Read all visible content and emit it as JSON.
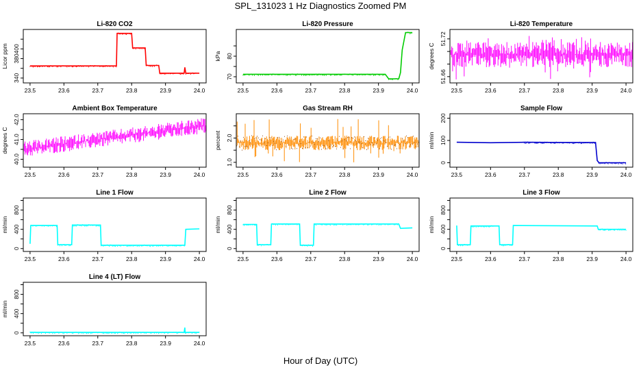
{
  "title": "SPL_131023  1 Hz Diagnostics Zoomed PM",
  "xlabel": "Hour of Day (UTC)",
  "chart_data": [
    {
      "type": "line",
      "title": "Li-820 CO2",
      "ylabel": "Licor ppm",
      "xlim": [
        23.48,
        24.02
      ],
      "ylim": [
        330,
        440
      ],
      "xticks": [
        "23.5",
        "23.6",
        "23.7",
        "23.8",
        "23.9",
        "24.0"
      ],
      "yticks": [
        340,
        360,
        380,
        400,
        420
      ],
      "ytick_labels": [
        "340",
        "",
        "380",
        "400",
        ""
      ],
      "color": "#ff0000",
      "series": [
        {
          "name": "CO2",
          "x": [
            23.5,
            23.755,
            23.757,
            23.8,
            23.803,
            23.84,
            23.843,
            23.88,
            23.883,
            23.955,
            23.957,
            23.96,
            23.962,
            24.0
          ],
          "y": [
            365,
            365,
            432,
            432,
            402,
            402,
            366,
            366,
            350,
            350,
            362,
            350,
            350,
            350
          ]
        }
      ]
    },
    {
      "type": "line",
      "title": "Li-820 Pressure",
      "ylabel": "kPa",
      "xlim": [
        23.48,
        24.02
      ],
      "ylim": [
        67,
        93
      ],
      "xticks": [
        "23.5",
        "23.6",
        "23.7",
        "23.8",
        "23.9",
        "24.0"
      ],
      "yticks": [
        70,
        75,
        80,
        85
      ],
      "ytick_labels": [
        "70",
        "",
        "80",
        ""
      ],
      "color": "#00cc00",
      "series": [
        {
          "name": "Pressure",
          "x": [
            23.5,
            23.92,
            23.93,
            23.96,
            23.965,
            23.97,
            23.98,
            24.0
          ],
          "y": [
            71.2,
            71.2,
            69.0,
            69.0,
            72.0,
            83.0,
            91.5,
            91.5
          ]
        }
      ]
    },
    {
      "type": "line",
      "title": "Li-820 Temperature",
      "ylabel": "degrees C",
      "xlim": [
        23.48,
        24.02
      ],
      "ylim": [
        51.65,
        51.735
      ],
      "xticks": [
        "23.5",
        "23.6",
        "23.7",
        "23.8",
        "23.9",
        "24.0"
      ],
      "yticks": [
        51.66,
        51.68,
        51.7,
        51.72
      ],
      "ytick_labels": [
        "51.66",
        "",
        "",
        "51.72"
      ],
      "color": "#ff00ff",
      "band": {
        "lo": 51.675,
        "hi": 51.715,
        "spike_lo": 51.655,
        "spike_hi": 51.725
      }
    },
    {
      "type": "line",
      "title": "Ambient Box Temperature",
      "ylabel": "degrees C",
      "xlim": [
        23.48,
        24.02
      ],
      "ylim": [
        39.6,
        42.3
      ],
      "xticks": [
        "23.5",
        "23.6",
        "23.7",
        "23.8",
        "23.9",
        "24.0"
      ],
      "yticks": [
        40.0,
        40.5,
        41.0,
        41.5,
        42.0
      ],
      "ytick_labels": [
        "40.0",
        "",
        "41.0",
        "",
        "42.0"
      ],
      "color": "#ff00ff",
      "band": {
        "lo_start": 40.1,
        "lo_end": 41.3,
        "hi_start": 40.9,
        "hi_end": 42.1
      }
    },
    {
      "type": "scatter",
      "title": "Gas Stream RH",
      "ylabel": "percent",
      "xlim": [
        23.48,
        24.02
      ],
      "ylim": [
        0.8,
        3.0
      ],
      "xticks": [
        "23.5",
        "23.6",
        "23.7",
        "23.8",
        "23.9",
        "24.0"
      ],
      "yticks": [
        1.0,
        1.5,
        2.0,
        2.5
      ],
      "ytick_labels": [
        "1.0",
        "",
        "2.0",
        ""
      ],
      "color": "#ff8c00",
      "band": {
        "lo": 1.5,
        "hi": 2.1,
        "spike_lo": 1.0,
        "spike_hi": 2.8
      }
    },
    {
      "type": "line",
      "title": "Sample Flow",
      "ylabel": "ml/min",
      "xlim": [
        23.48,
        24.02
      ],
      "ylim": [
        -20,
        220
      ],
      "xticks": [
        "23.5",
        "23.6",
        "23.7",
        "23.8",
        "23.9",
        "24.0"
      ],
      "yticks": [
        0,
        100,
        200
      ],
      "ytick_labels": [
        "0",
        "100",
        "200"
      ],
      "color": "#0000cd",
      "series": [
        {
          "name": "Sample Flow",
          "x": [
            23.5,
            23.6,
            23.7,
            23.8,
            23.91,
            23.915,
            23.92,
            24.0
          ],
          "y": [
            92,
            90,
            92,
            91,
            91,
            10,
            0,
            0
          ]
        }
      ]
    },
    {
      "type": "line",
      "title": "Line 1 Flow",
      "ylabel": "ml/min",
      "xlim": [
        23.48,
        24.02
      ],
      "ylim": [
        -60,
        1050
      ],
      "xticks": [
        "23.5",
        "23.6",
        "23.7",
        "23.8",
        "23.9",
        "24.0"
      ],
      "yticks": [
        0,
        200,
        400,
        600,
        800,
        1000
      ],
      "ytick_labels": [
        "0",
        "",
        "400",
        "",
        "800",
        ""
      ],
      "color": "#00ffff",
      "series": [
        {
          "name": "Line 1",
          "x": [
            23.5,
            23.502,
            23.58,
            23.582,
            23.623,
            23.625,
            23.708,
            23.71,
            23.957,
            23.96,
            24.0
          ],
          "y": [
            100,
            480,
            480,
            80,
            80,
            490,
            490,
            70,
            70,
            400,
            410
          ]
        }
      ]
    },
    {
      "type": "line",
      "title": "Line 2 Flow",
      "ylabel": "ml/min",
      "xlim": [
        23.48,
        24.02
      ],
      "ylim": [
        -60,
        1050
      ],
      "xticks": [
        "23.5",
        "23.6",
        "23.7",
        "23.8",
        "23.9",
        "24.0"
      ],
      "yticks": [
        0,
        200,
        400,
        600,
        800,
        1000
      ],
      "ytick_labels": [
        "0",
        "",
        "400",
        "",
        "800",
        ""
      ],
      "color": "#00ffff",
      "series": [
        {
          "name": "Line 2",
          "x": [
            23.5,
            23.54,
            23.542,
            23.582,
            23.584,
            23.667,
            23.669,
            23.708,
            23.71,
            23.96,
            23.965,
            24.0
          ],
          "y": [
            500,
            500,
            80,
            80,
            510,
            510,
            70,
            70,
            510,
            510,
            420,
            430
          ]
        }
      ]
    },
    {
      "type": "line",
      "title": "Line 3 Flow",
      "ylabel": "ml/min",
      "xlim": [
        23.48,
        24.02
      ],
      "ylim": [
        -60,
        1050
      ],
      "xticks": [
        "23.5",
        "23.6",
        "23.7",
        "23.8",
        "23.9",
        "24.0"
      ],
      "yticks": [
        0,
        200,
        400,
        600,
        800,
        1000
      ],
      "ytick_labels": [
        "0",
        "",
        "400",
        "",
        "800",
        ""
      ],
      "color": "#00ffff",
      "series": [
        {
          "name": "Line 3",
          "x": [
            23.5,
            23.502,
            23.54,
            23.542,
            23.625,
            23.627,
            23.665,
            23.667,
            23.915,
            23.918,
            24.0
          ],
          "y": [
            480,
            80,
            80,
            470,
            470,
            80,
            80,
            480,
            470,
            400,
            400
          ]
        }
      ]
    },
    {
      "type": "line",
      "title": "Line 4 (LT) Flow",
      "ylabel": "ml/min",
      "xlim": [
        23.48,
        24.02
      ],
      "ylim": [
        -60,
        1050
      ],
      "xticks": [
        "23.5",
        "23.6",
        "23.7",
        "23.8",
        "23.9",
        "24.0"
      ],
      "yticks": [
        0,
        200,
        400,
        600,
        800,
        1000
      ],
      "ytick_labels": [
        "0",
        "",
        "400",
        "",
        "800",
        ""
      ],
      "color": "#00ffff",
      "series": [
        {
          "name": "Line 4",
          "x": [
            23.5,
            23.955,
            23.957,
            23.958,
            23.96,
            24.0
          ],
          "y": [
            10,
            10,
            110,
            10,
            10,
            10
          ]
        }
      ]
    }
  ]
}
